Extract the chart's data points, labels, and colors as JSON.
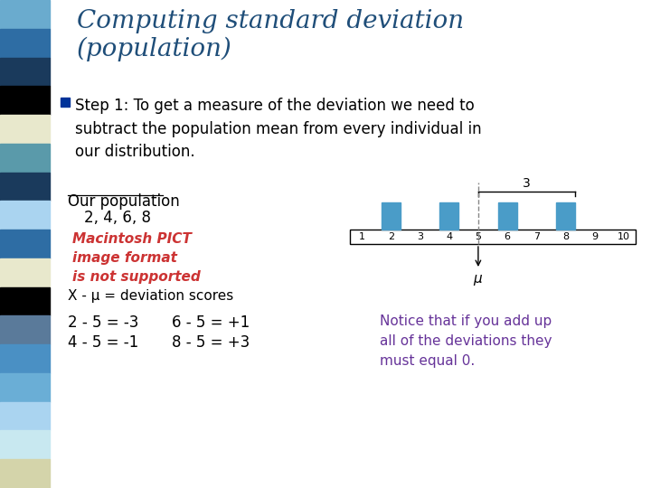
{
  "title_line1": "Computing standard deviation",
  "title_line2": "(population)",
  "title_color": "#1F4E79",
  "title_fontsize": 20,
  "bg_color": "#FFFFFF",
  "left_bar_colors": [
    "#6aabce",
    "#2e6da4",
    "#1a3a5c",
    "#000000",
    "#e8e8cc",
    "#5a9aaa",
    "#1a3a5c",
    "#aad4f0",
    "#2e6da4",
    "#e8e8cc",
    "#000000",
    "#5a7a9a",
    "#4a90c4",
    "#6aaed6",
    "#aad4f0",
    "#c8e8f0",
    "#d4d4aa"
  ],
  "left_bar_width": 55,
  "bullet_color": "#003399",
  "bullet_text": "Step 1: To get a measure of the deviation we need to\nsubtract the population mean from every individual in\nour distribution.",
  "bullet_fontsize": 12,
  "pop_label": "Our population",
  "pop_values": "2, 4, 6, 8",
  "pop_fontsize": 12,
  "image_placeholder_text": "Macintosh PICT\nimage format\nis not supported",
  "image_placeholder_color": "#CC3333",
  "deviation_label": "X - μ = deviation scores",
  "deviation_fontsize": 11,
  "equations_left": [
    "2 - 5 = -3",
    "4 - 5 = -1"
  ],
  "equations_right": [
    "6 - 5 = +1",
    "8 - 5 = +3"
  ],
  "eq_fontsize": 12,
  "notice_text": "Notice that if you add up\nall of the deviations they\nmust equal 0.",
  "notice_color": "#663399",
  "notice_fontsize": 11,
  "bar_color": "#4A9CC8",
  "bar_positions": [
    2,
    4,
    6,
    8
  ],
  "axis_min": 1,
  "axis_max": 10,
  "mu_value": 5,
  "bracket_label": "3"
}
